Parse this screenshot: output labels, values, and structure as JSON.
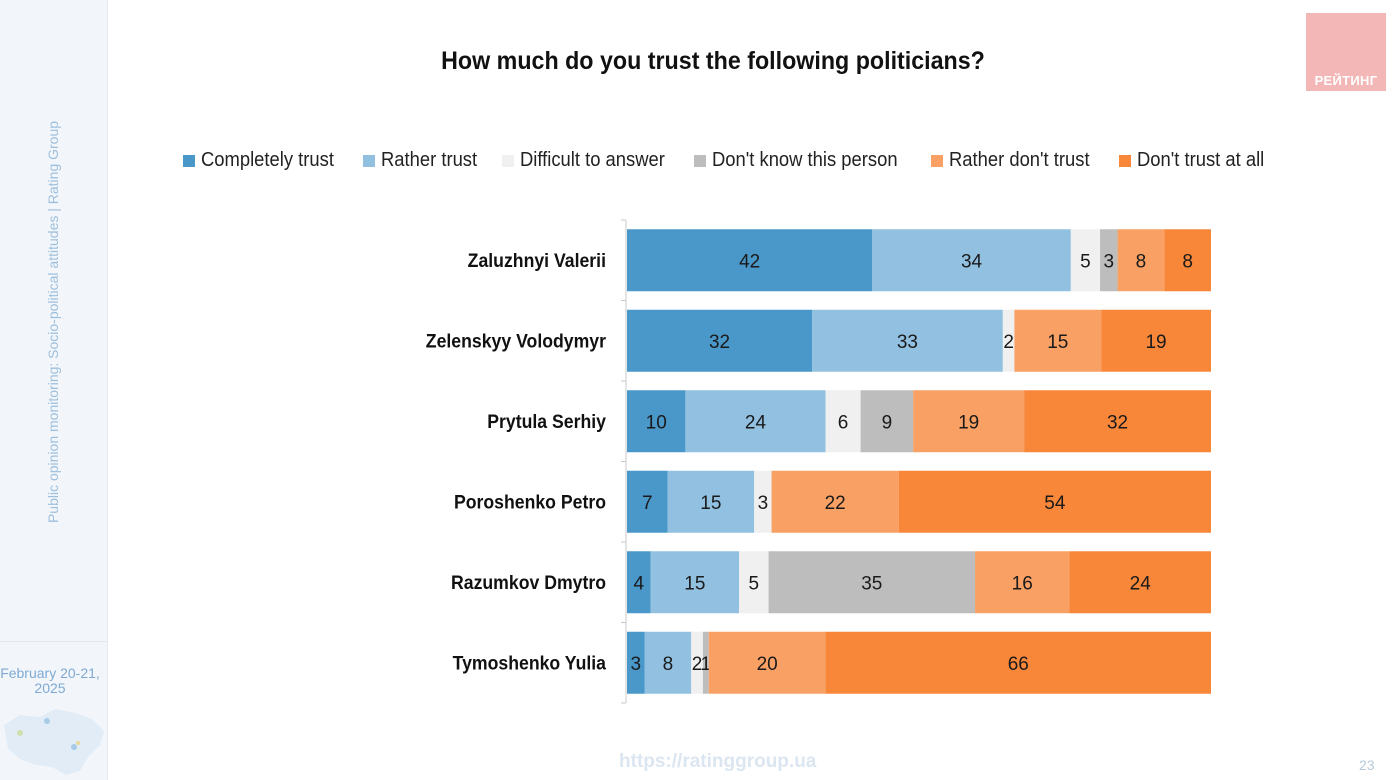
{
  "sidebar": {
    "vertical_text": "Public opinion monitoring: Socio-political attitudes | Rating Group",
    "date_line1": "February 20-21,",
    "date_line2": "2025"
  },
  "logo": {
    "text": "РЕЙТИНГ",
    "color": "#f3b7b7"
  },
  "footer": {
    "url": "https://ratinggroup.ua",
    "page_number": "23"
  },
  "chart_data": {
    "type": "bar",
    "orientation": "horizontal",
    "stacked": true,
    "title": "How much do you trust the following politicians?",
    "xlabel": "",
    "ylabel": "",
    "xlim": [
      0,
      100
    ],
    "grid": false,
    "legend_position": "top",
    "categories": [
      "Zaluzhnyi Valerii",
      "Zelenskyy Volodymyr",
      "Prytula Serhiy",
      "Poroshenko Petro",
      "Razumkov Dmytro",
      "Tymoshenko Yulia"
    ],
    "series": [
      {
        "name": "Completely trust",
        "color": "#4a97c9",
        "values": [
          42,
          32,
          10,
          7,
          4,
          3
        ]
      },
      {
        "name": "Rather trust",
        "color": "#91c0e0",
        "values": [
          34,
          33,
          24,
          15,
          15,
          8
        ]
      },
      {
        "name": "Difficult to answer",
        "color": "#f0f0f0",
        "values": [
          5,
          2,
          6,
          3,
          5,
          2
        ]
      },
      {
        "name": "Don't know this person",
        "color": "#bdbdbd",
        "values": [
          3,
          0,
          9,
          0,
          35,
          1
        ]
      },
      {
        "name": "Rather don't trust",
        "color": "#f9a164",
        "values": [
          8,
          15,
          19,
          22,
          16,
          20
        ]
      },
      {
        "name": "Don't trust at all",
        "color": "#f8873a",
        "values": [
          8,
          19,
          32,
          54,
          24,
          66
        ]
      }
    ]
  }
}
